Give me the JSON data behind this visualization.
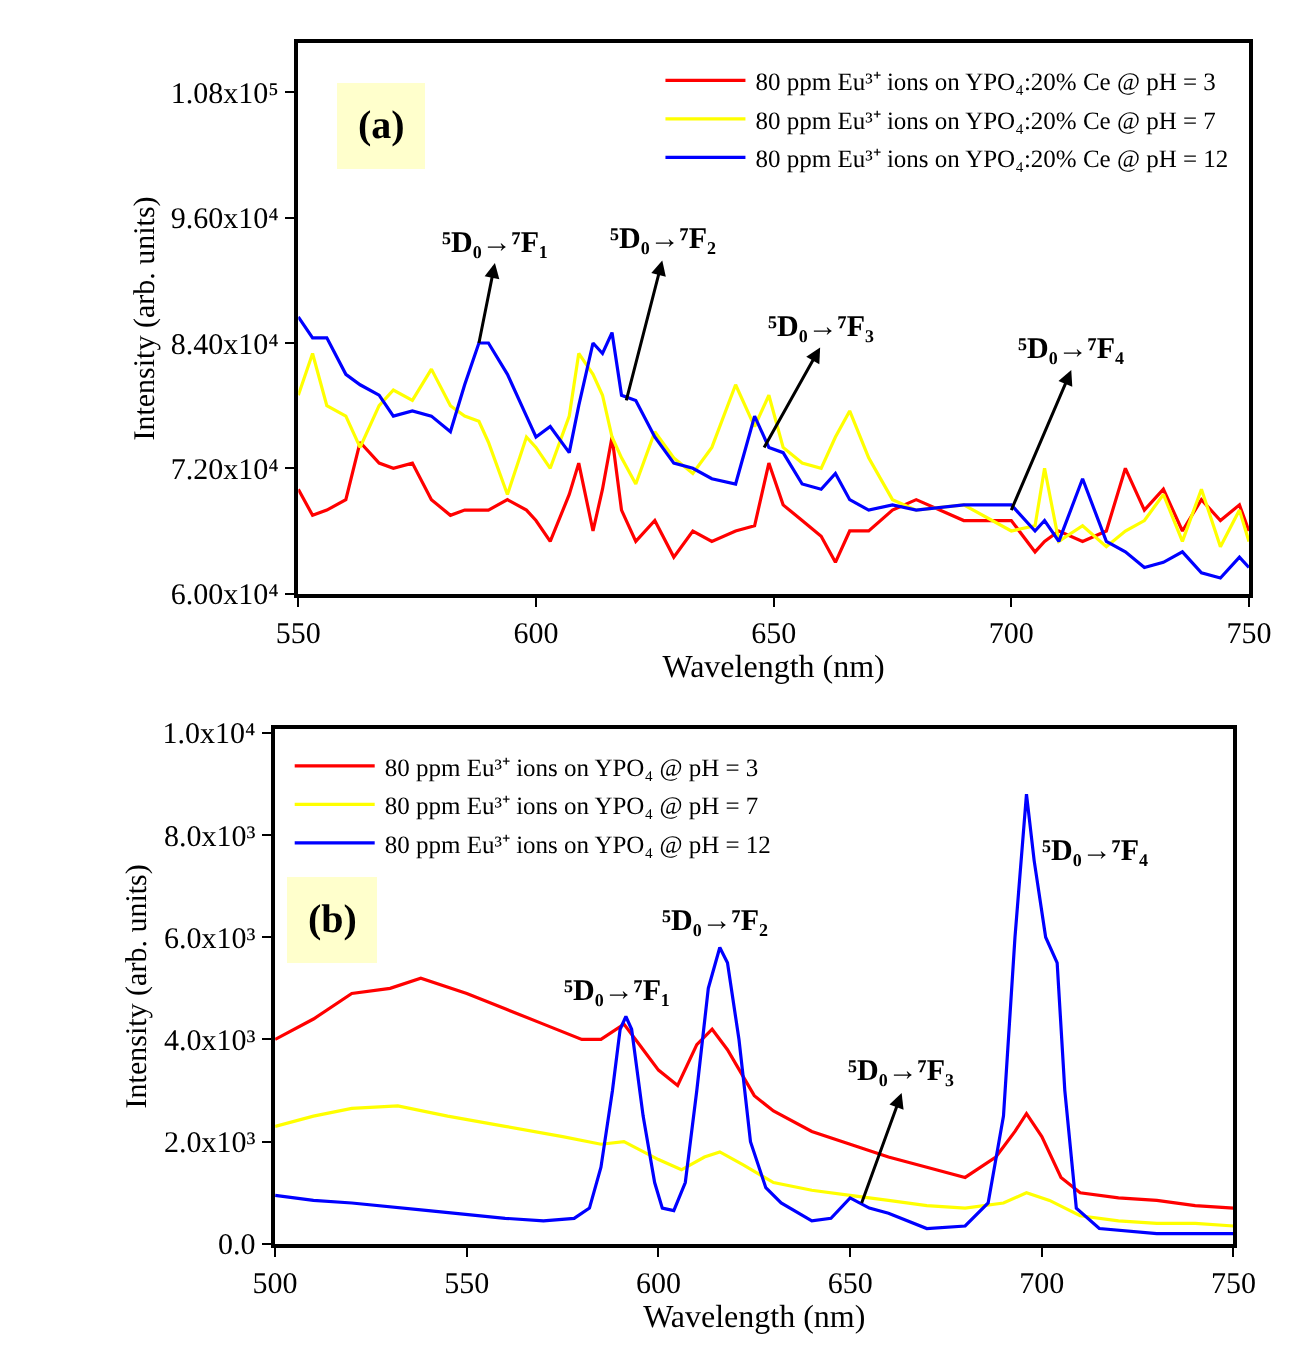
{
  "chart_data": [
    {
      "type": "line",
      "xlabel": "Wavelength (nm)",
      "ylabel": "Intensity (arb. units)",
      "xlim": [
        550,
        750
      ],
      "xticks": [
        550,
        600,
        650,
        700,
        750
      ],
      "ylim": [
        60000,
        112700
      ],
      "yticks": [
        {
          "value": 60000,
          "label": "6.00x10⁴"
        },
        {
          "value": 72000,
          "label": "7.20x10⁴"
        },
        {
          "value": 84000,
          "label": "8.40x10⁴"
        },
        {
          "value": 96000,
          "label": "9.60x10⁴"
        },
        {
          "value": 108000,
          "label": "1.08x10⁵"
        }
      ],
      "legend": "top right",
      "marker": "none",
      "line_style": "solid",
      "annotations": [
        "(a)",
        {
          "text": "⁵D₀→⁷F₁",
          "x": 588,
          "y": 84000
        },
        {
          "text": "⁵D₀→⁷F₂",
          "x": 619,
          "y": 78500
        },
        {
          "text": "⁵D₀→⁷F₃",
          "x": 648,
          "y": 74000
        },
        {
          "text": "⁵D₀→⁷F₄",
          "x": 700,
          "y": 68000
        }
      ],
      "x": [
        550,
        553,
        556,
        560,
        563,
        567,
        570,
        574,
        578,
        582,
        585,
        588,
        590,
        594,
        598,
        600,
        603,
        607,
        609,
        612,
        614,
        616,
        618,
        621,
        625,
        629,
        633,
        637,
        642,
        646,
        649,
        652,
        656,
        660,
        663,
        666,
        670,
        675,
        680,
        690,
        700,
        705,
        707,
        710,
        715,
        720,
        724,
        728,
        732,
        736,
        740,
        744,
        748,
        750
      ],
      "series": [
        {
          "name": "80 ppm Eu³⁺ ions on YPO₄:20% Ce @ pH = 3",
          "color": "#ff0000",
          "values": [
            70000,
            67500,
            68000,
            69000,
            74500,
            72500,
            72000,
            72500,
            69000,
            67500,
            68000,
            68000,
            68000,
            69000,
            68000,
            67000,
            65000,
            69500,
            72500,
            66000,
            70000,
            75000,
            68000,
            65000,
            67000,
            63500,
            66000,
            65000,
            66000,
            66500,
            72500,
            68500,
            67000,
            65500,
            63000,
            66000,
            66000,
            68000,
            69000,
            67000,
            67000,
            64000,
            65000,
            66000,
            65000,
            66000,
            72000,
            68000,
            70000,
            66000,
            69000,
            67000,
            68500,
            66000
          ]
        },
        {
          "name": "80 ppm Eu³⁺ ions on YPO₄:20% Ce @ pH = 7",
          "color": "#ffff00",
          "values": [
            79000,
            83000,
            78000,
            77000,
            74000,
            78000,
            79500,
            78500,
            81500,
            78000,
            77000,
            76500,
            74500,
            69500,
            75000,
            74000,
            72000,
            77000,
            83000,
            81000,
            79000,
            75000,
            73000,
            70500,
            75500,
            73000,
            71500,
            74000,
            80000,
            76000,
            79000,
            74000,
            72500,
            72000,
            75000,
            77500,
            73000,
            69000,
            68000,
            68500,
            66000,
            66500,
            72000,
            65000,
            66500,
            64500,
            66000,
            67000,
            69500,
            65000,
            70000,
            64500,
            68000,
            65000
          ]
        },
        {
          "name": "80 ppm Eu³⁺ ions on YPO₄:20% Ce @ pH = 12",
          "color": "#0000ff",
          "values": [
            86500,
            84500,
            84500,
            81000,
            80000,
            79000,
            77000,
            77500,
            77000,
            75500,
            80000,
            84000,
            84000,
            81000,
            77000,
            75000,
            76000,
            73500,
            78000,
            84000,
            83000,
            85000,
            79000,
            78500,
            75000,
            72500,
            72000,
            71000,
            70500,
            77000,
            74000,
            73500,
            70500,
            70000,
            71500,
            69000,
            68000,
            68500,
            68000,
            68500,
            68500,
            66000,
            67000,
            65000,
            71000,
            65000,
            64000,
            62500,
            63000,
            64000,
            62000,
            61500,
            63500,
            62500
          ]
        }
      ]
    },
    {
      "type": "line",
      "xlabel": "Wavelength (nm)",
      "ylabel": "Intensity (arb. units)",
      "xlim": [
        500,
        750
      ],
      "xticks": [
        500,
        550,
        600,
        650,
        700,
        750
      ],
      "ylim": [
        0,
        10080
      ],
      "yticks": [
        {
          "value": 0,
          "label": "0.0"
        },
        {
          "value": 2000,
          "label": "2.0x10³"
        },
        {
          "value": 4000,
          "label": "4.0x10³"
        },
        {
          "value": 6000,
          "label": "6.0x10³"
        },
        {
          "value": 8000,
          "label": "8.0x10³"
        },
        {
          "value": 10000,
          "label": "1.0x10⁴"
        }
      ],
      "legend": "top left",
      "marker": "none",
      "line_style": "solid",
      "annotations": [
        "(b)",
        "⁵D₀→⁷F₁",
        "⁵D₀→⁷F₂",
        {
          "text": "⁵D₀→⁷F₃",
          "x": 653,
          "y": 800
        },
        "⁵D₀→⁷F₄"
      ],
      "series": [
        {
          "name": "80 ppm Eu³⁺ ions on YPO₄ @ pH = 3",
          "color": "#ff0000",
          "x": [
            500,
            510,
            520,
            530,
            538,
            550,
            560,
            570,
            580,
            585,
            591,
            595,
            600,
            605,
            610,
            614,
            618,
            625,
            630,
            640,
            650,
            660,
            670,
            680,
            688,
            693,
            696,
            700,
            705,
            710,
            720,
            730,
            740,
            750
          ],
          "values": [
            4000,
            4400,
            4900,
            5000,
            5200,
            4900,
            4600,
            4300,
            4000,
            4000,
            4300,
            3900,
            3400,
            3100,
            3900,
            4200,
            3800,
            2900,
            2600,
            2200,
            1950,
            1700,
            1500,
            1300,
            1700,
            2200,
            2550,
            2100,
            1300,
            1000,
            900,
            850,
            750,
            700
          ]
        },
        {
          "name": "80 ppm Eu³⁺ ions on YPO₄ @ pH = 7",
          "color": "#ffff00",
          "x": [
            500,
            510,
            520,
            532,
            545,
            560,
            575,
            585,
            591,
            600,
            606,
            612,
            616,
            622,
            630,
            640,
            650,
            660,
            670,
            680,
            690,
            696,
            702,
            710,
            720,
            730,
            740,
            750
          ],
          "values": [
            2300,
            2500,
            2650,
            2700,
            2500,
            2300,
            2100,
            1950,
            2000,
            1650,
            1450,
            1700,
            1800,
            1550,
            1200,
            1050,
            950,
            850,
            750,
            700,
            800,
            1000,
            850,
            550,
            450,
            400,
            400,
            350
          ]
        },
        {
          "name": "80 ppm Eu³⁺ ions on YPO₄ @ pH = 12",
          "color": "#0000ff",
          "x": [
            500,
            510,
            520,
            540,
            560,
            570,
            578,
            582,
            585,
            588,
            590,
            591.5,
            593,
            596,
            599,
            601,
            604,
            607,
            610,
            613,
            616,
            618,
            621,
            624,
            628,
            632,
            640,
            645,
            650,
            655,
            660,
            670,
            680,
            686,
            690,
            693,
            696,
            698,
            701,
            704,
            706,
            709,
            715,
            730,
            740,
            750
          ],
          "values": [
            950,
            850,
            800,
            650,
            500,
            450,
            500,
            700,
            1500,
            3000,
            4200,
            4450,
            4200,
            2500,
            1200,
            700,
            650,
            1200,
            3000,
            5000,
            5800,
            5500,
            4000,
            2000,
            1100,
            800,
            450,
            500,
            900,
            700,
            600,
            300,
            350,
            800,
            2500,
            6000,
            8800,
            7500,
            6000,
            5500,
            3000,
            700,
            300,
            200,
            200,
            200
          ]
        }
      ]
    }
  ]
}
